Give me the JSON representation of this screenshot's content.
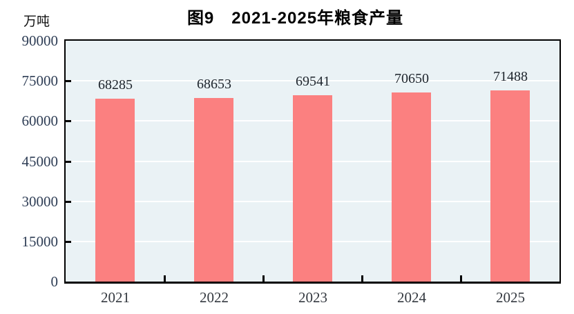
{
  "chart_data": {
    "type": "bar",
    "title": "图9　2021-2025年粮食产量",
    "unit_label": "万吨",
    "categories": [
      "2021",
      "2022",
      "2023",
      "2024",
      "2025"
    ],
    "values": [
      68285,
      68653,
      69541,
      70650,
      71488
    ],
    "data_labels": [
      "68285",
      "68653",
      "69541",
      "70650",
      "71488"
    ],
    "xlabel": "",
    "ylabel": "万吨",
    "ylim": [
      0,
      90000
    ],
    "ytick_interval": 15000,
    "yticks": [
      0,
      15000,
      30000,
      45000,
      60000,
      75000,
      90000
    ],
    "ytick_labels": [
      "0",
      "15000",
      "30000",
      "45000",
      "60000",
      "75000",
      "90000"
    ],
    "grid": "horizontal",
    "legend_position": "none",
    "colors": {
      "bar": "#fb8080",
      "plot_background": "#eaf2f5",
      "gridline": "#ffffff",
      "axis": "#000000",
      "title_text": "#000000",
      "ytick_text": "#2e3d55",
      "xtick_text": "#33383f",
      "data_label_text": "#1d242c"
    }
  }
}
